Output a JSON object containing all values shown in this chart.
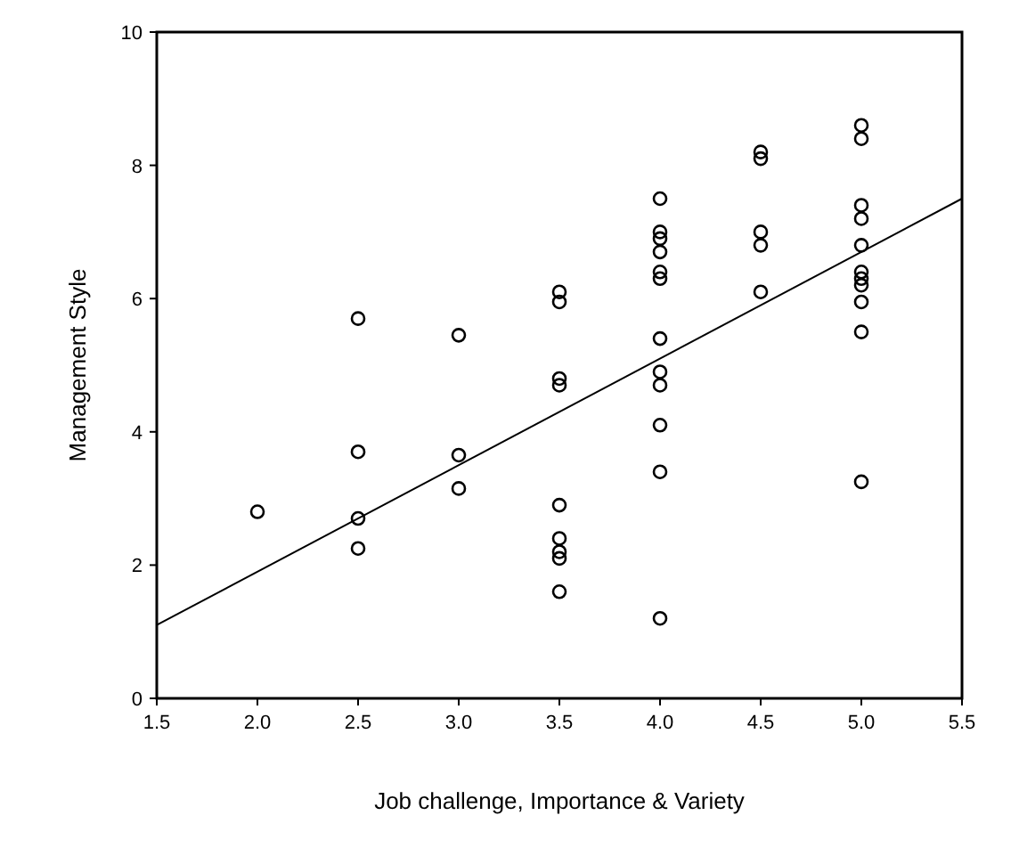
{
  "chart_data": {
    "type": "scatter",
    "xlabel": "Job challenge, Importance & Variety",
    "ylabel": "Management Style",
    "xlim": [
      1.5,
      5.5
    ],
    "xticks": [
      {
        "value": 1.5,
        "label": "1.5"
      },
      {
        "value": 2,
        "label": "2.0"
      },
      {
        "value": 2.5,
        "label": "2.5"
      },
      {
        "value": 3,
        "label": "3.0"
      },
      {
        "value": 3.5,
        "label": "3.5"
      },
      {
        "value": 4,
        "label": "4.0"
      },
      {
        "value": 4.5,
        "label": "4.5"
      },
      {
        "value": 5,
        "label": "5.0"
      },
      {
        "value": 5.5,
        "label": "5.5"
      }
    ],
    "ylim": [
      0,
      10
    ],
    "yticks": [
      0,
      2,
      4,
      6,
      8,
      10
    ],
    "grid": false,
    "marker": "circle",
    "series": [
      {
        "color": "#000000",
        "x": [
          2.0,
          2.5,
          2.5,
          2.5,
          2.5,
          3.0,
          3.0,
          3.0,
          3.5,
          3.5,
          3.5,
          3.5,
          3.5,
          3.5,
          3.5,
          3.5,
          3.5,
          4.0,
          4.0,
          4.0,
          4.0,
          4.0,
          4.0,
          4.0,
          4.0,
          4.0,
          4.0,
          4.0,
          4.0,
          4.5,
          4.5,
          4.5,
          4.5,
          4.5,
          5.0,
          5.0,
          5.0,
          5.0,
          5.0,
          5.0,
          5.0,
          5.0,
          5.0,
          5.0,
          5.0
        ],
        "values": [
          2.8,
          5.7,
          3.7,
          2.7,
          2.25,
          5.45,
          3.65,
          3.15,
          6.1,
          5.95,
          4.8,
          4.7,
          2.9,
          2.4,
          2.2,
          2.1,
          1.6,
          7.5,
          7.0,
          6.9,
          6.7,
          6.4,
          6.3,
          5.4,
          4.9,
          4.7,
          4.1,
          3.4,
          1.2,
          8.2,
          8.1,
          7.0,
          6.8,
          6.1,
          8.6,
          8.4,
          7.4,
          7.2,
          6.8,
          6.4,
          6.3,
          6.2,
          5.95,
          5.5,
          3.25
        ]
      },
      {
        "type": "line",
        "color": "#000000",
        "marker": "none",
        "line_style": "solid",
        "x": [
          1.5,
          5.5
        ],
        "values": [
          1.1,
          7.5
        ]
      }
    ]
  }
}
